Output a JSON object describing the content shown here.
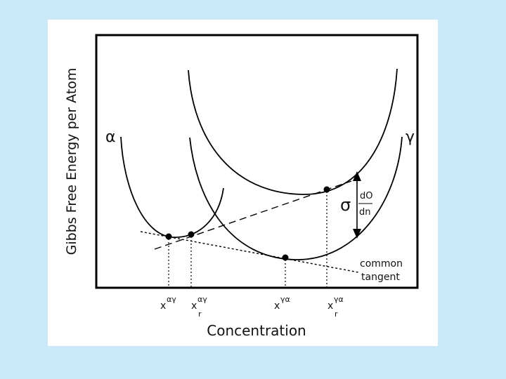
{
  "diagram": {
    "ylabel": "Gibbs Free Energy per Atom",
    "xlabel": "Concentration",
    "phase_alpha": "α",
    "phase_gamma": "γ",
    "sigma": "σ",
    "dO": "dO",
    "dn": "dn",
    "common_tangent_line1": "common",
    "common_tangent_line2": "tangent",
    "x_marks": [
      {
        "base": "x",
        "sup": "αγ",
        "sub": ""
      },
      {
        "base": "x",
        "sup": "αγ",
        "sub": "r"
      },
      {
        "base": "x",
        "sup": "γα",
        "sub": ""
      },
      {
        "base": "x",
        "sup": "γα",
        "sub": "r"
      }
    ]
  }
}
